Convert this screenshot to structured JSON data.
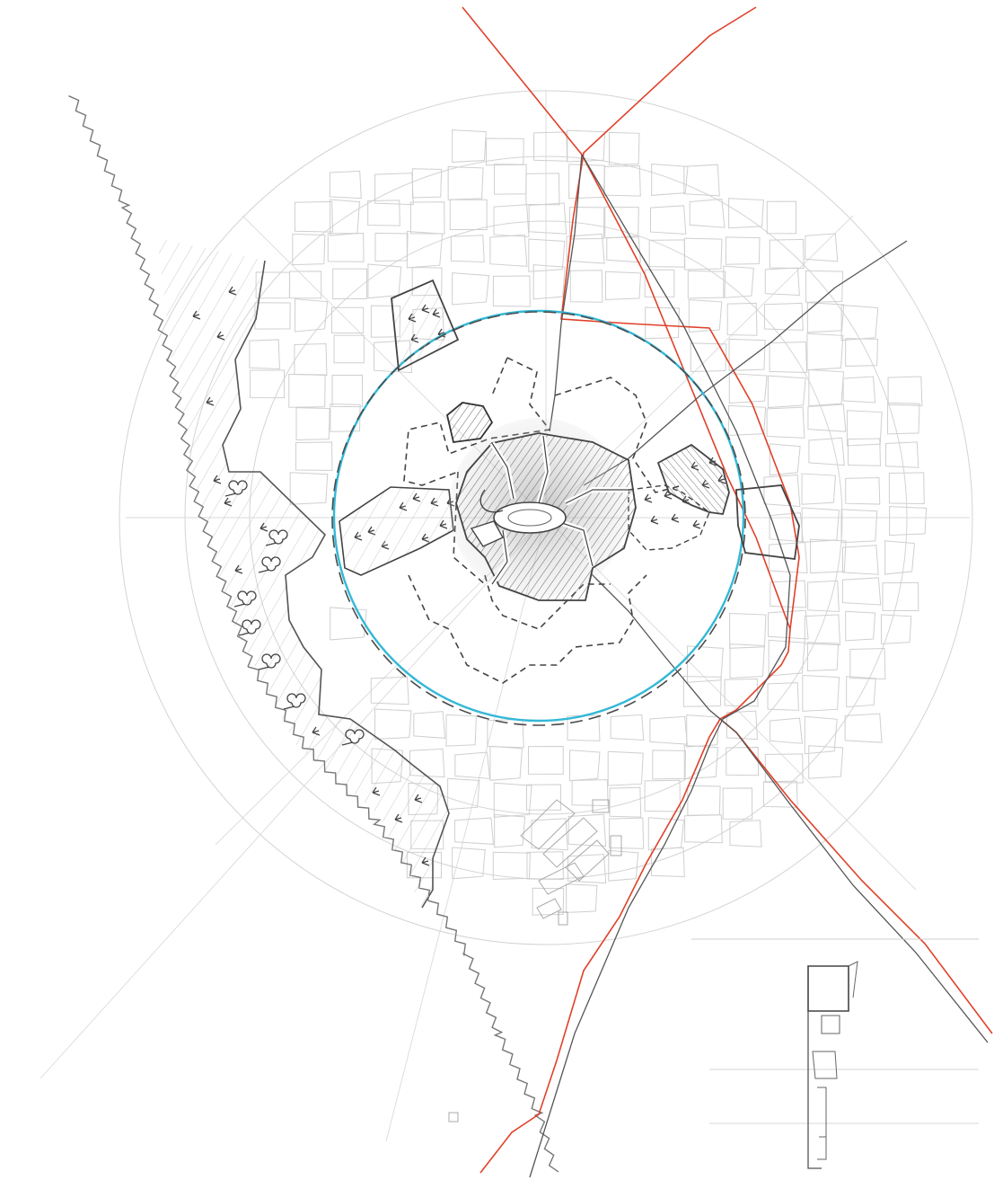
{
  "map": {
    "style": "pencil-sketch",
    "labels": [],
    "colors": {
      "paper": "#ffffff",
      "pencil": "#555555",
      "pencil_light": "#c9c9c9",
      "road": "#e0412a",
      "boundary": "#33b8d6",
      "hatch": "#7a7a7a"
    },
    "features": [
      {
        "name": "city-center",
        "kind": "hatched-core"
      },
      {
        "name": "inner-ring",
        "kind": "cyan-circle-with-dashed-outline"
      },
      {
        "name": "outer-rings",
        "kind": "faint-concentric-circles"
      },
      {
        "name": "block-grid",
        "kind": "faint-irregular-blocks"
      },
      {
        "name": "river",
        "kind": "wavy-line"
      },
      {
        "name": "green-belt",
        "kind": "hatched-strip-with-trees"
      },
      {
        "name": "roads",
        "kind": "red-lines"
      },
      {
        "name": "inset-plan",
        "kind": "small-floor-plan-sketch"
      }
    ]
  }
}
